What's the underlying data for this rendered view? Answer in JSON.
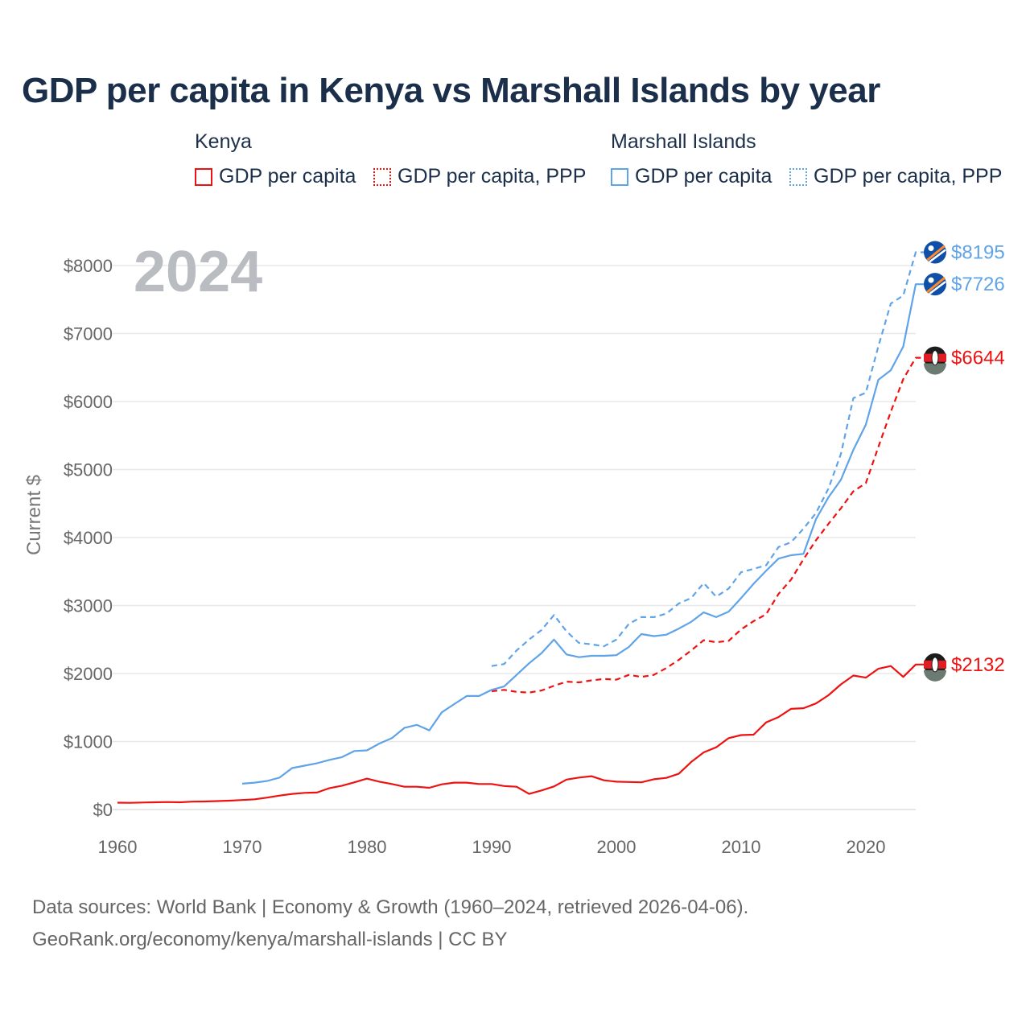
{
  "chart_data": {
    "type": "line",
    "title": "GDP per capita in Kenya vs Marshall Islands by year",
    "year_watermark": "2024",
    "ylabel": "Current $",
    "xlabel": "",
    "xlim": [
      1960,
      2024
    ],
    "ylim": [
      0,
      8000
    ],
    "x_ticks": [
      "1960",
      "1970",
      "1980",
      "1990",
      "2000",
      "2010",
      "2020"
    ],
    "y_ticks": [
      "$0",
      "$1000",
      "$2000",
      "$3000",
      "$4000",
      "$5000",
      "$6000",
      "$7000",
      "$8000"
    ],
    "grid": true,
    "legend": {
      "placement": "top",
      "groups": [
        {
          "name": "Kenya",
          "items": [
            "GDP per capita",
            "GDP per capita, PPP"
          ]
        },
        {
          "name": "Marshall Islands",
          "items": [
            "GDP per capita",
            "GDP per capita, PPP"
          ]
        }
      ]
    },
    "series": [
      {
        "name": "Kenya GDP per capita",
        "color": "#ee1111",
        "dash": false,
        "start": 1960,
        "end_label": "$2132",
        "values": [
          100,
          98,
          103,
          107,
          110,
          106,
          116,
          118,
          124,
          130,
          140,
          150,
          175,
          205,
          230,
          245,
          250,
          315,
          350,
          400,
          455,
          410,
          375,
          335,
          335,
          320,
          370,
          395,
          395,
          375,
          375,
          345,
          335,
          230,
          280,
          340,
          440,
          470,
          490,
          430,
          410,
          405,
          400,
          445,
          465,
          525,
          700,
          840,
          915,
          1050,
          1095,
          1100,
          1280,
          1360,
          1480,
          1490,
          1560,
          1680,
          1840,
          1970,
          1940,
          2070,
          2110,
          1950,
          2132
        ]
      },
      {
        "name": "Kenya GDP per capita, PPP",
        "color": "#ee1111",
        "dash": true,
        "start": 1990,
        "end_label": "$6644",
        "values": [
          1740,
          1760,
          1730,
          1720,
          1750,
          1820,
          1880,
          1870,
          1900,
          1920,
          1910,
          1980,
          1950,
          1980,
          2080,
          2200,
          2340,
          2490,
          2460,
          2480,
          2650,
          2770,
          2870,
          3170,
          3380,
          3680,
          3960,
          4200,
          4430,
          4680,
          4800,
          5330,
          5850,
          6330,
          6644
        ]
      },
      {
        "name": "Marshall Islands GDP per capita",
        "color": "#5fa3e8",
        "dash": false,
        "start": 1970,
        "end_label": "$7726",
        "values": [
          380,
          395,
          420,
          470,
          610,
          645,
          680,
          730,
          770,
          860,
          870,
          970,
          1050,
          1200,
          1245,
          1165,
          1430,
          1550,
          1670,
          1670,
          1760,
          1810,
          1980,
          2150,
          2300,
          2500,
          2280,
          2240,
          2260,
          2260,
          2270,
          2390,
          2580,
          2550,
          2570,
          2660,
          2760,
          2900,
          2830,
          2910,
          3110,
          3320,
          3510,
          3690,
          3740,
          3760,
          4270,
          4590,
          4850,
          5290,
          5660,
          6320,
          6460,
          6810,
          7726
        ]
      },
      {
        "name": "Marshall Islands GDP per capita, PPP",
        "color": "#5fa3e8",
        "dash": true,
        "start": 1990,
        "end_label": "$8195",
        "values": [
          2110,
          2140,
          2340,
          2500,
          2640,
          2860,
          2620,
          2450,
          2430,
          2400,
          2500,
          2730,
          2830,
          2830,
          2880,
          3030,
          3110,
          3330,
          3130,
          3250,
          3490,
          3540,
          3590,
          3860,
          3930,
          4130,
          4360,
          4720,
          5230,
          6050,
          6130,
          6810,
          7440,
          7560,
          8195
        ]
      }
    ]
  },
  "source": {
    "line1": "Data sources: World Bank | Economy & Growth (1960–2024, retrieved 2026-04-06).",
    "line2": "GeoRank.org/economy/kenya/marshall-islands | CC BY"
  }
}
